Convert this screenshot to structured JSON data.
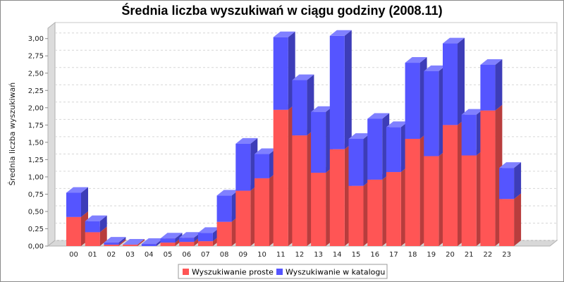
{
  "chart_data": {
    "type": "bar",
    "stacked": true,
    "title": "Średnia liczba wyszukiwań w ciągu godziny (2008.11)",
    "ylabel": "Średnia liczba wyszukiwań",
    "xlabel": "",
    "ylim": [
      0,
      3.15
    ],
    "yticks": [
      "0,00",
      "0,25",
      "0,50",
      "0,75",
      "1,00",
      "1,25",
      "1,50",
      "1,75",
      "2,00",
      "2,25",
      "2,50",
      "2,75",
      "3,00"
    ],
    "ytick_values": [
      0,
      0.25,
      0.5,
      0.75,
      1.0,
      1.25,
      1.5,
      1.75,
      2.0,
      2.25,
      2.5,
      2.75,
      3.0
    ],
    "grid": true,
    "legend_position": "bottom",
    "categories": [
      "00",
      "01",
      "02",
      "03",
      "04",
      "05",
      "06",
      "07",
      "08",
      "09",
      "10",
      "11",
      "12",
      "13",
      "14",
      "15",
      "16",
      "17",
      "18",
      "19",
      "20",
      "21",
      "22",
      "23"
    ],
    "series": [
      {
        "name": "Wyszukiwanie proste",
        "color": "#ff5555",
        "values": [
          0.42,
          0.2,
          0.02,
          0.02,
          0.0,
          0.05,
          0.06,
          0.07,
          0.35,
          0.8,
          0.98,
          1.97,
          1.6,
          1.06,
          1.4,
          0.87,
          0.96,
          1.07,
          1.55,
          1.3,
          1.75,
          1.31,
          1.96,
          0.68
        ]
      },
      {
        "name": "Wyszukiwanie w katalogu",
        "color": "#5555ff",
        "values": [
          0.35,
          0.16,
          0.03,
          0.0,
          0.03,
          0.06,
          0.06,
          0.12,
          0.38,
          0.68,
          0.35,
          1.05,
          0.8,
          0.88,
          1.64,
          0.68,
          0.88,
          0.65,
          1.1,
          1.23,
          1.18,
          0.59,
          0.66,
          0.45
        ]
      }
    ]
  }
}
